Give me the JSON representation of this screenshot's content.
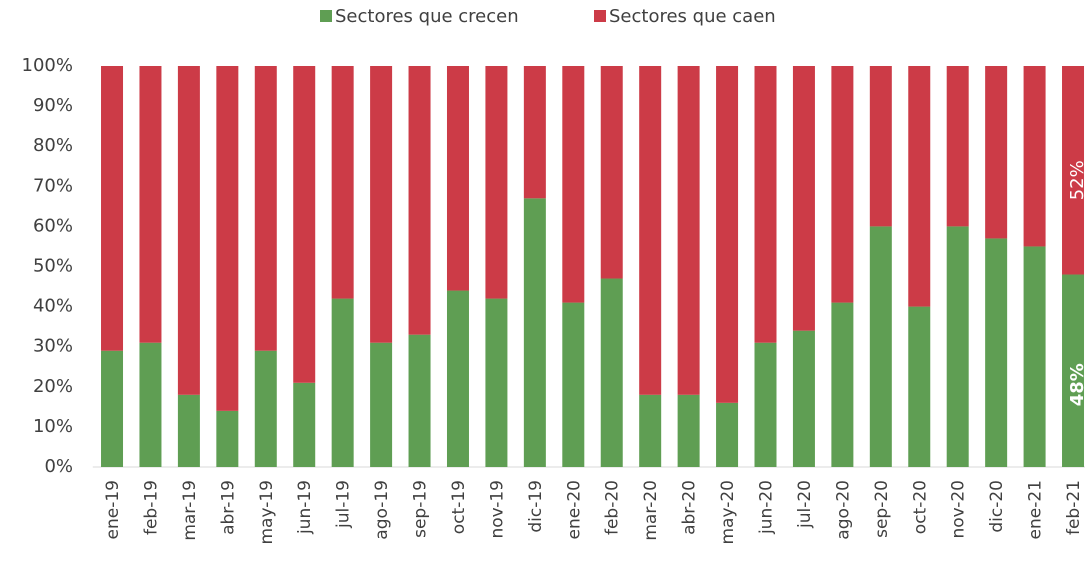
{
  "chart_data": {
    "type": "stacked_bar",
    "categories": [
      "ene-19",
      "feb-19",
      "mar-19",
      "abr-19",
      "may-19",
      "jun-19",
      "jul-19",
      "ago-19",
      "sep-19",
      "oct-19",
      "nov-19",
      "dic-19",
      "ene-20",
      "feb-20",
      "mar-20",
      "abr-20",
      "may-20",
      "jun-20",
      "jul-20",
      "ago-20",
      "sep-20",
      "oct-20",
      "nov-20",
      "dic-20",
      "ene-21",
      "feb-21"
    ],
    "series": [
      {
        "name": "Sectores que crecen",
        "color": "#5f9e53",
        "values": [
          29,
          31,
          18,
          14,
          29,
          21,
          42,
          31,
          33,
          44,
          42,
          67,
          41,
          47,
          18,
          18,
          16,
          31,
          34,
          41,
          60,
          40,
          60,
          57,
          55,
          48
        ],
        "value_labels": [
          null,
          null,
          null,
          null,
          null,
          null,
          null,
          null,
          null,
          null,
          null,
          null,
          null,
          null,
          null,
          null,
          null,
          null,
          null,
          null,
          null,
          null,
          null,
          null,
          null,
          "48%"
        ]
      },
      {
        "name": "Sectores que caen",
        "color": "#cc3b47",
        "values": [
          71,
          69,
          82,
          86,
          71,
          79,
          58,
          69,
          67,
          56,
          58,
          33,
          59,
          53,
          82,
          82,
          84,
          69,
          66,
          59,
          40,
          60,
          40,
          43,
          45,
          52
        ],
        "value_labels": [
          null,
          null,
          null,
          null,
          null,
          null,
          null,
          null,
          null,
          null,
          null,
          null,
          null,
          null,
          null,
          null,
          null,
          null,
          null,
          null,
          null,
          null,
          null,
          null,
          null,
          "52%"
        ]
      }
    ],
    "ylim": [
      0,
      100
    ],
    "yticks": [
      {
        "value": 0,
        "label": "0%"
      },
      {
        "value": 10,
        "label": "10%"
      },
      {
        "value": 20,
        "label": "20%"
      },
      {
        "value": 30,
        "label": "30%"
      },
      {
        "value": 40,
        "label": "40%"
      },
      {
        "value": 50,
        "label": "50%"
      },
      {
        "value": 60,
        "label": "60%"
      },
      {
        "value": 70,
        "label": "70%"
      },
      {
        "value": 80,
        "label": "80%"
      },
      {
        "value": 90,
        "label": "90%"
      },
      {
        "value": 100,
        "label": "100%"
      }
    ],
    "legend": "top"
  }
}
